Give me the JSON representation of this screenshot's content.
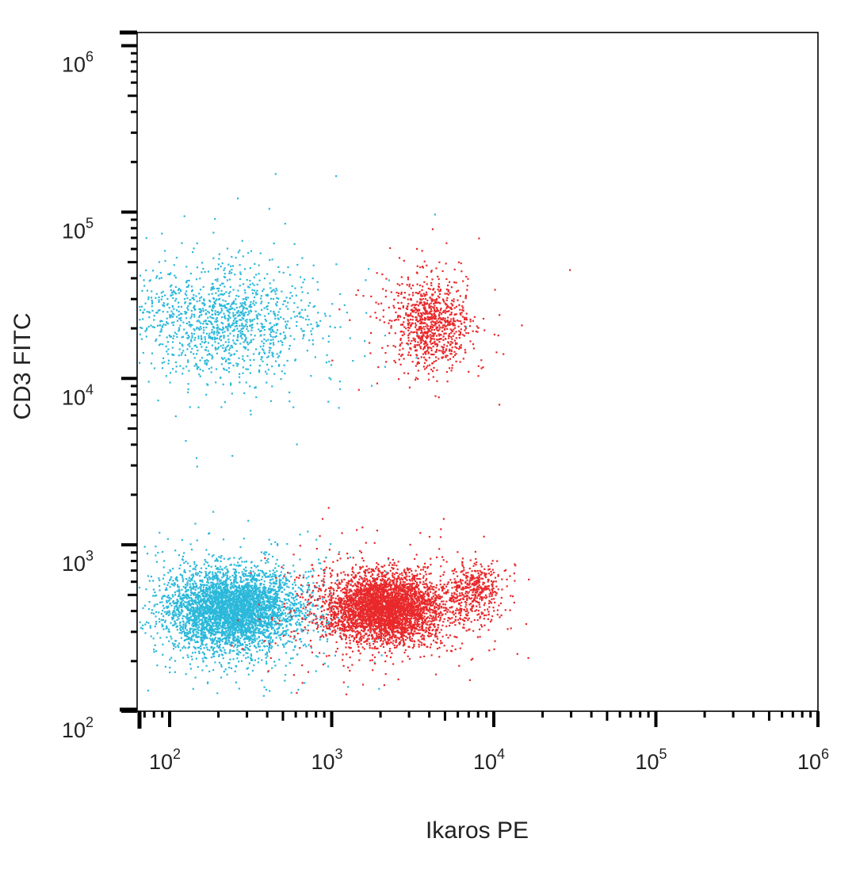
{
  "chart_data": {
    "type": "scatter",
    "title": "",
    "xlabel": "Ikaros PE",
    "ylabel": "CD3 FITC",
    "x_scale": "log",
    "y_scale": "log",
    "xlim": [
      63,
      1000000
    ],
    "ylim": [
      100,
      1200000
    ],
    "x_ticks": [
      {
        "value": 100,
        "base": "10",
        "exp": "2"
      },
      {
        "value": 1000,
        "base": "10",
        "exp": "3"
      },
      {
        "value": 10000,
        "base": "10",
        "exp": "4"
      },
      {
        "value": 100000,
        "base": "10",
        "exp": "5"
      },
      {
        "value": 1000000,
        "base": "10",
        "exp": "6"
      }
    ],
    "y_ticks": [
      {
        "value": 100,
        "base": "10",
        "exp": "2"
      },
      {
        "value": 1000,
        "base": "10",
        "exp": "3"
      },
      {
        "value": 10000,
        "base": "10",
        "exp": "4"
      },
      {
        "value": 100000,
        "base": "10",
        "exp": "5"
      },
      {
        "value": 1000000,
        "base": "10",
        "exp": "6"
      }
    ],
    "grid": false,
    "legend": "none",
    "series": [
      {
        "color": "#2bb8da",
        "populations": [
          {
            "x_center": 240,
            "y_center": 410,
            "x_spread_decades": 0.2,
            "y_spread_decades": 0.12,
            "approx_events": 4200
          },
          {
            "x_center": 210,
            "y_center": 22000,
            "x_spread_decades": 0.28,
            "y_spread_decades": 0.17,
            "approx_events": 1300
          }
        ]
      },
      {
        "color": "#e8292b",
        "populations": [
          {
            "x_center": 2100,
            "y_center": 420,
            "x_spread_decades": 0.18,
            "y_spread_decades": 0.1,
            "approx_events": 4000
          },
          {
            "x_center": 7500,
            "y_center": 540,
            "x_spread_decades": 0.08,
            "y_spread_decades": 0.09,
            "approx_events": 420
          },
          {
            "x_center": 4000,
            "y_center": 22000,
            "x_spread_decades": 0.12,
            "y_spread_decades": 0.13,
            "approx_events": 900
          }
        ]
      }
    ]
  }
}
